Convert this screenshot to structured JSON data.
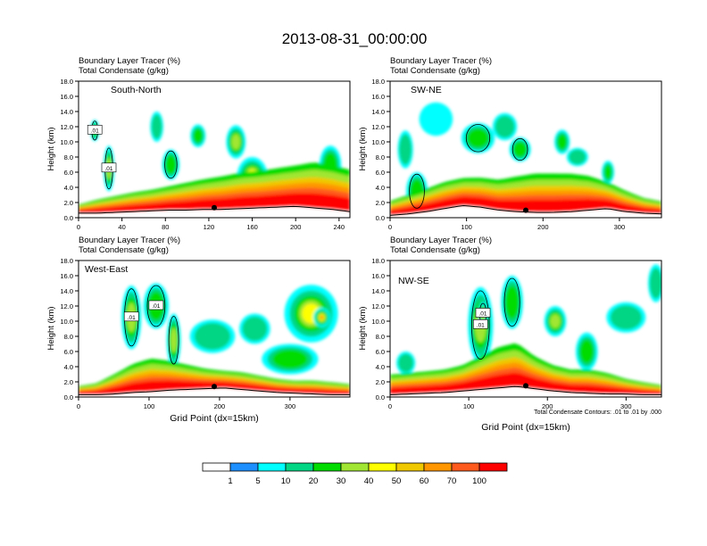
{
  "chart_data": {
    "type": "heatmap",
    "title": "2013-08-31_00:00:00",
    "panels": [
      {
        "name": "South-North",
        "field1": "Boundary Layer Tracer   (%)",
        "field2": "Total Condensate   (g/kg)",
        "xlim": [
          0,
          250
        ],
        "xticks": [
          "0",
          "40",
          "80",
          "120",
          "160",
          "200",
          "240"
        ],
        "xtick_values": [
          0,
          40,
          80,
          120,
          160,
          200,
          240
        ],
        "ylim": [
          0,
          18
        ],
        "contour_labels": [
          ".01",
          ".01"
        ],
        "surface_height": [
          0.6,
          0.6,
          0.7,
          0.8,
          0.9,
          1.0,
          1.0,
          1.1,
          1.1,
          1.2,
          1.3,
          1.4,
          1.5,
          1.3,
          1.1,
          0.8
        ],
        "bl_top": [
          1.5,
          2.0,
          2.4,
          2.8,
          3.1,
          3.5,
          3.9,
          4.3,
          4.6,
          5.0,
          5.2,
          5.5,
          5.8,
          6.1,
          5.8,
          5.2
        ],
        "blobs": [
          {
            "x": 15,
            "y": 11.5,
            "rx": 4,
            "ry": 1.4,
            "v": 20
          },
          {
            "x": 28,
            "y": 6.5,
            "rx": 5,
            "ry": 3.0,
            "v": 30
          },
          {
            "x": 72,
            "y": 12.0,
            "rx": 6,
            "ry": 2.0,
            "v": 10
          },
          {
            "x": 85,
            "y": 7.0,
            "rx": 8,
            "ry": 2.0,
            "v": 20
          },
          {
            "x": 110,
            "y": 10.8,
            "rx": 7,
            "ry": 1.5,
            "v": 20
          },
          {
            "x": 145,
            "y": 10.0,
            "rx": 9,
            "ry": 2.2,
            "v": 30
          },
          {
            "x": 160,
            "y": 5.5,
            "rx": 14,
            "ry": 2.5,
            "v": 50
          },
          {
            "x": 200,
            "y": 3.5,
            "rx": 12,
            "ry": 1.6,
            "v": 60
          },
          {
            "x": 232,
            "y": 7.0,
            "rx": 10,
            "ry": 2.5,
            "v": 20
          }
        ]
      },
      {
        "name": "SW-NE",
        "field1": "Boundary Layer Tracer   (%)",
        "field2": "Total Condensate   (g/kg)",
        "xlim": [
          0,
          355
        ],
        "xticks": [
          "0",
          "100",
          "200",
          "300"
        ],
        "xtick_values": [
          0,
          100,
          200,
          300
        ],
        "ylim": [
          0,
          18
        ],
        "contour_labels": [],
        "surface_height": [
          0.3,
          0.5,
          0.8,
          1.2,
          1.6,
          1.4,
          1.0,
          0.8,
          0.7,
          0.7,
          0.8,
          1.0,
          1.2,
          0.8,
          0.6,
          0.5
        ],
        "bl_top": [
          1.8,
          2.5,
          3.2,
          4.0,
          4.5,
          4.5,
          4.2,
          4.5,
          4.8,
          4.8,
          4.8,
          4.6,
          4.0,
          3.0,
          2.2,
          1.8
        ],
        "blobs": [
          {
            "x": 20,
            "y": 9.0,
            "rx": 10,
            "ry": 2.5,
            "v": 10
          },
          {
            "x": 35,
            "y": 3.5,
            "rx": 14,
            "ry": 2.5,
            "v": 20
          },
          {
            "x": 60,
            "y": 13.0,
            "rx": 22,
            "ry": 2.2,
            "v": 5
          },
          {
            "x": 115,
            "y": 10.5,
            "rx": 22,
            "ry": 2.0,
            "v": 20
          },
          {
            "x": 150,
            "y": 12.0,
            "rx": 16,
            "ry": 1.8,
            "v": 10
          },
          {
            "x": 170,
            "y": 9.0,
            "rx": 14,
            "ry": 1.6,
            "v": 20
          },
          {
            "x": 225,
            "y": 10.0,
            "rx": 10,
            "ry": 1.6,
            "v": 20
          },
          {
            "x": 245,
            "y": 8.0,
            "rx": 14,
            "ry": 1.2,
            "v": 10
          },
          {
            "x": 285,
            "y": 6.0,
            "rx": 8,
            "ry": 1.5,
            "v": 20
          }
        ]
      },
      {
        "name": "West-East",
        "field1": "Boundary Layer Tracer   (%)",
        "field2": "Total Condensate   (g/kg)",
        "xlim": [
          0,
          385
        ],
        "xticks": [
          "0",
          "100",
          "200",
          "300"
        ],
        "xtick_values": [
          0,
          100,
          200,
          300
        ],
        "ylim": [
          0,
          18
        ],
        "contour_labels": [
          ".01",
          ".01"
        ],
        "surface_height": [
          0.3,
          0.3,
          0.4,
          0.6,
          0.7,
          0.9,
          1.0,
          1.1,
          1.2,
          1.0,
          0.8,
          0.6,
          0.5,
          0.4,
          0.3,
          0.3
        ],
        "bl_top": [
          1.2,
          1.5,
          2.5,
          3.6,
          4.2,
          4.0,
          3.6,
          3.2,
          3.0,
          2.8,
          2.4,
          2.0,
          1.8,
          1.8,
          1.6,
          1.4
        ],
        "blobs": [
          {
            "x": 75,
            "y": 10.5,
            "rx": 14,
            "ry": 4.2,
            "v": 30
          },
          {
            "x": 110,
            "y": 12.0,
            "rx": 18,
            "ry": 3.0,
            "v": 20
          },
          {
            "x": 135,
            "y": 7.5,
            "rx": 10,
            "ry": 3.5,
            "v": 30
          },
          {
            "x": 190,
            "y": 8.0,
            "rx": 32,
            "ry": 2.2,
            "v": 10
          },
          {
            "x": 250,
            "y": 9.0,
            "rx": 22,
            "ry": 2.0,
            "v": 10
          },
          {
            "x": 330,
            "y": 11.0,
            "rx": 38,
            "ry": 3.8,
            "v": 40
          },
          {
            "x": 345,
            "y": 10.5,
            "rx": 12,
            "ry": 1.3,
            "v": 70
          },
          {
            "x": 300,
            "y": 5.0,
            "rx": 40,
            "ry": 2.0,
            "v": 20
          }
        ]
      },
      {
        "name": "NW-SE",
        "field1": "Boundary Layer Tracer   (%)",
        "field2": "Total Condensate   (g/kg)",
        "xlim": [
          0,
          345
        ],
        "xticks": [
          "0",
          "100",
          "200",
          "300"
        ],
        "xtick_values": [
          0,
          100,
          200,
          300
        ],
        "ylim": [
          0,
          18
        ],
        "contour_labels": [
          ".01",
          ".01"
        ],
        "surface_height": [
          0.3,
          0.4,
          0.5,
          0.6,
          0.8,
          1.0,
          1.2,
          1.4,
          1.1,
          0.8,
          0.6,
          0.5,
          0.4,
          0.4,
          0.3,
          0.3
        ],
        "bl_top": [
          2.4,
          2.6,
          2.8,
          3.0,
          3.5,
          4.5,
          5.5,
          6.0,
          4.5,
          3.5,
          3.0,
          3.0,
          2.6,
          2.0,
          1.6,
          1.3
        ],
        "blobs": [
          {
            "x": 20,
            "y": 4.5,
            "rx": 12,
            "ry": 1.5,
            "v": 10
          },
          {
            "x": 115,
            "y": 9.5,
            "rx": 16,
            "ry": 5.0,
            "v": 30
          },
          {
            "x": 118,
            "y": 11.0,
            "rx": 6,
            "ry": 1.5,
            "v": 50
          },
          {
            "x": 155,
            "y": 12.5,
            "rx": 14,
            "ry": 3.5,
            "v": 20
          },
          {
            "x": 210,
            "y": 10.0,
            "rx": 14,
            "ry": 2.0,
            "v": 30
          },
          {
            "x": 250,
            "y": 6.0,
            "rx": 14,
            "ry": 2.5,
            "v": 20
          },
          {
            "x": 300,
            "y": 10.5,
            "rx": 25,
            "ry": 2.0,
            "v": 10
          },
          {
            "x": 338,
            "y": 15.0,
            "rx": 10,
            "ry": 2.5,
            "v": 10
          }
        ]
      }
    ],
    "ylabel": "Height (km)",
    "yticks": [
      "0.0",
      "2.0",
      "4.0",
      "6.0",
      "8.0",
      "10.0",
      "12.0",
      "14.0",
      "16.0",
      "18.0"
    ],
    "ytick_values": [
      0,
      2,
      4,
      6,
      8,
      10,
      12,
      14,
      16,
      18
    ],
    "xlabel": "Grid Point (dx=15km)",
    "contour_info": "Total Condensate Contours: .01 to .01 by .000",
    "colorbar": {
      "levels": [
        1,
        5,
        10,
        20,
        30,
        40,
        50,
        60,
        70,
        100
      ],
      "labels": [
        "1",
        "5",
        "10",
        "20",
        "30",
        "40",
        "50",
        "60",
        "70",
        "100"
      ],
      "colors": [
        "#ffffff",
        "#1e8fff",
        "#00ffff",
        "#00d684",
        "#00dc00",
        "#a0e632",
        "#ffff00",
        "#f0c800",
        "#ff9600",
        "#ff5a1e",
        "#ff0000"
      ]
    }
  }
}
